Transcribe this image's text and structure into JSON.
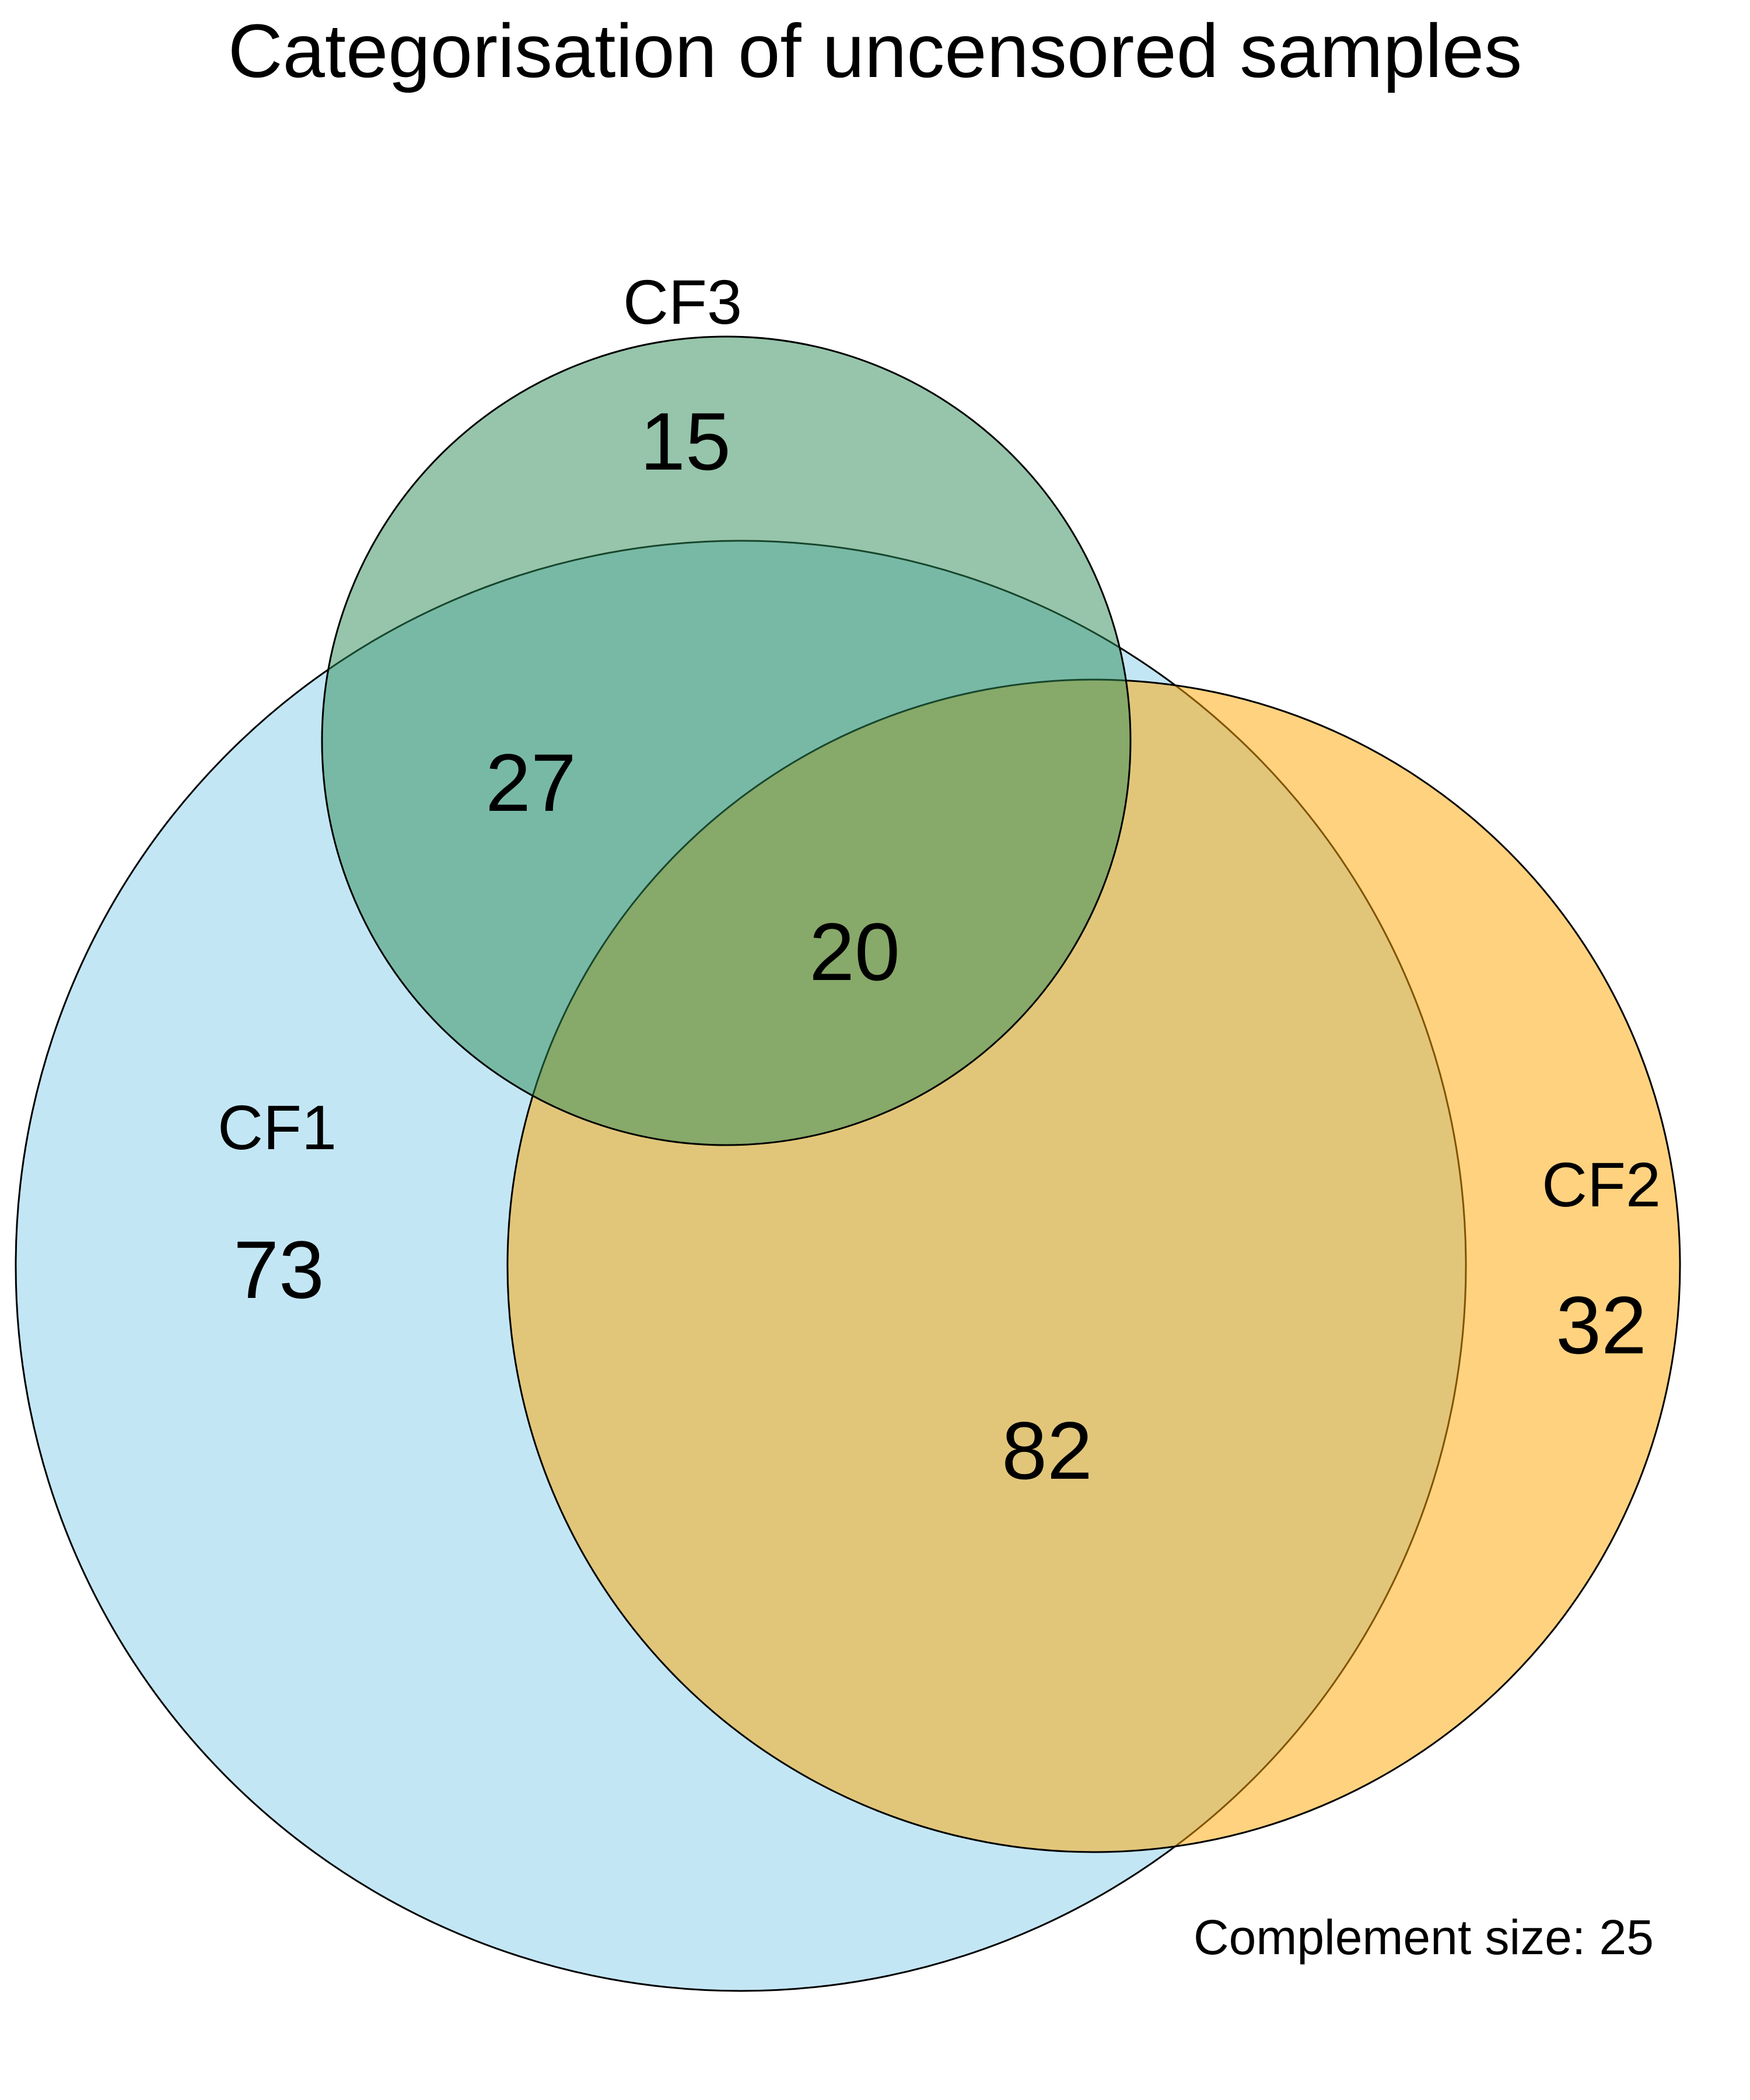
{
  "title": "Categorisation of uncensored samples",
  "sets": [
    {
      "id": "cf1",
      "label": "CF1",
      "color": "#87CEEB"
    },
    {
      "id": "cf2",
      "label": "CF2",
      "color": "#FFA500"
    },
    {
      "id": "cf3",
      "label": "CF3",
      "color": "#2E8B57"
    }
  ],
  "regions": {
    "cf1_only": "73",
    "cf2_only": "32",
    "cf3_only": "15",
    "cf1_cf3": "27",
    "cf1_cf2": "82",
    "cf1_cf2_cf3": "20"
  },
  "complement": "Complement size: 25"
}
